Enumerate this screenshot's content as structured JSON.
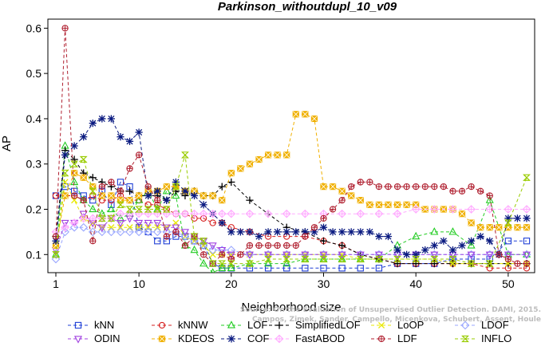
{
  "chart_data": {
    "type": "line",
    "title": "Parkinson_withoutdupl_10_v09",
    "xlabel": "Neighborhood size",
    "ylabel": "AP",
    "xlim": [
      1,
      52
    ],
    "ylim": [
      0.06,
      0.62
    ],
    "xticks": [
      1,
      10,
      20,
      30,
      40,
      50
    ],
    "yticks": [
      0.1,
      0.2,
      0.3,
      0.4,
      0.5,
      0.6
    ],
    "grid": false,
    "legend_position": "bottom",
    "watermark": [
      "Source: On the Evaluation of Unsupervised Outlier Detection. DAMI, 2015.",
      "Campos, Zimek, Sander, Campello, Micenkova, Schubert, Assent, Houle"
    ],
    "series": [
      {
        "name": "kNN",
        "color": "#1f3fd6",
        "marker": "square",
        "x": [
          1,
          2,
          3,
          4,
          5,
          6,
          7,
          8,
          9,
          10,
          11,
          12,
          13,
          14,
          15,
          16,
          17,
          18,
          19,
          20,
          22,
          24,
          26,
          28,
          30,
          32,
          34,
          36,
          38,
          40,
          42,
          44,
          46,
          48,
          50,
          52
        ],
        "y": [
          0.23,
          0.25,
          0.24,
          0.23,
          0.22,
          0.24,
          0.21,
          0.26,
          0.25,
          0.16,
          0.15,
          0.13,
          0.13,
          0.14,
          0.14,
          0.13,
          0.12,
          0.08,
          0.07,
          0.07,
          0.07,
          0.07,
          0.07,
          0.07,
          0.07,
          0.07,
          0.07,
          0.07,
          0.08,
          0.08,
          0.08,
          0.09,
          0.09,
          0.09,
          0.13,
          0.13
        ]
      },
      {
        "name": "kNNW",
        "color": "#d62020",
        "marker": "circle",
        "x": [
          1,
          2,
          3,
          4,
          5,
          6,
          7,
          8,
          9,
          10,
          11,
          12,
          13,
          14,
          15,
          16,
          17,
          18,
          19,
          20,
          22,
          24,
          26,
          28,
          30,
          32,
          34,
          36,
          38,
          40,
          42,
          44,
          46,
          48,
          50,
          52
        ],
        "y": [
          0.23,
          0.23,
          0.23,
          0.22,
          0.23,
          0.22,
          0.22,
          0.23,
          0.22,
          0.22,
          0.21,
          0.21,
          0.2,
          0.19,
          0.19,
          0.18,
          0.18,
          0.17,
          0.17,
          0.16,
          0.15,
          0.14,
          0.14,
          0.14,
          0.13,
          0.12,
          0.1,
          0.09,
          0.08,
          0.08,
          0.08,
          0.08,
          0.08,
          0.07,
          0.07,
          0.07
        ]
      },
      {
        "name": "LOF",
        "color": "#22cc22",
        "marker": "triangle-up",
        "x": [
          1,
          2,
          3,
          4,
          5,
          6,
          7,
          8,
          9,
          10,
          11,
          12,
          13,
          14,
          15,
          16,
          17,
          18,
          19,
          20,
          22,
          24,
          26,
          28,
          30,
          32,
          34,
          36,
          38,
          40,
          42,
          44,
          46,
          48,
          50,
          52
        ],
        "y": [
          0.1,
          0.34,
          0.26,
          0.22,
          0.2,
          0.19,
          0.2,
          0.18,
          0.19,
          0.22,
          0.24,
          0.2,
          0.24,
          0.23,
          0.12,
          0.11,
          0.08,
          0.06,
          0.07,
          0.07,
          0.08,
          0.08,
          0.08,
          0.09,
          0.09,
          0.09,
          0.09,
          0.09,
          0.12,
          0.14,
          0.15,
          0.15,
          0.12,
          0.22,
          0.1,
          0.1
        ]
      },
      {
        "name": "SimplifiedLOF",
        "color": "#000000",
        "marker": "plus",
        "x": [
          1,
          2,
          3,
          4,
          5,
          6,
          7,
          8,
          9,
          10,
          11,
          12,
          13,
          14,
          15,
          16,
          17,
          18,
          19,
          20,
          22,
          24,
          26,
          28,
          30,
          32,
          34,
          36,
          38,
          40,
          42,
          44,
          46,
          48,
          50,
          52
        ],
        "y": [
          0.14,
          0.33,
          0.31,
          0.28,
          0.27,
          0.26,
          0.25,
          0.24,
          0.24,
          0.23,
          0.23,
          0.23,
          0.22,
          0.24,
          0.23,
          0.24,
          0.23,
          0.23,
          0.25,
          0.26,
          0.22,
          0.19,
          0.16,
          0.15,
          0.13,
          0.12,
          0.1,
          0.09,
          0.08,
          0.08,
          0.08,
          0.08,
          0.08,
          0.08,
          0.08,
          0.08
        ]
      },
      {
        "name": "LoOP",
        "color": "#e8e800",
        "marker": "x",
        "x": [
          1,
          2,
          3,
          4,
          5,
          6,
          7,
          8,
          9,
          10,
          11,
          12,
          13,
          14,
          15,
          16,
          17,
          18,
          19,
          20,
          22,
          24,
          26,
          28,
          30,
          32,
          34,
          36,
          38,
          40,
          42,
          44,
          46,
          48,
          50,
          52
        ],
        "y": [
          0.1,
          0.26,
          0.22,
          0.18,
          0.17,
          0.16,
          0.16,
          0.16,
          0.16,
          0.16,
          0.16,
          0.16,
          0.16,
          0.17,
          0.14,
          0.13,
          0.12,
          0.1,
          0.1,
          0.1,
          0.1,
          0.1,
          0.1,
          0.1,
          0.1,
          0.1,
          0.09,
          0.09,
          0.09,
          0.09,
          0.09,
          0.08,
          0.08,
          0.08,
          0.08,
          0.08
        ]
      },
      {
        "name": "LDOF",
        "color": "#9aa7ff",
        "marker": "diamond",
        "x": [
          1,
          2,
          3,
          4,
          5,
          6,
          7,
          8,
          9,
          10,
          11,
          12,
          13,
          14,
          15,
          16,
          17,
          18,
          19,
          20,
          22,
          24,
          26,
          28,
          30,
          32,
          34,
          36,
          38,
          40,
          42,
          44,
          46,
          48,
          50,
          52
        ],
        "y": [
          0.09,
          0.15,
          0.16,
          0.16,
          0.15,
          0.15,
          0.15,
          0.15,
          0.15,
          0.15,
          0.15,
          0.15,
          0.15,
          0.15,
          0.14,
          0.13,
          0.12,
          0.11,
          0.11,
          0.11,
          0.1,
          0.1,
          0.1,
          0.1,
          0.1,
          0.1,
          0.1,
          0.1,
          0.1,
          0.1,
          0.1,
          0.1,
          0.1,
          0.1,
          0.1,
          0.1
        ]
      },
      {
        "name": "ODIN",
        "color": "#a040e0",
        "marker": "triangle-down",
        "x": [
          1,
          2,
          3,
          4,
          5,
          6,
          7,
          8,
          9,
          10,
          11,
          12,
          13,
          14,
          15,
          16,
          17,
          18,
          19,
          20,
          22,
          24,
          26,
          28,
          30,
          32,
          34,
          36,
          38,
          40,
          42,
          44,
          46,
          48,
          50,
          52
        ],
        "y": [
          0.11,
          0.17,
          0.17,
          0.19,
          0.17,
          0.16,
          0.18,
          0.17,
          0.18,
          0.17,
          0.17,
          0.17,
          0.16,
          0.16,
          0.15,
          0.14,
          0.13,
          0.12,
          0.11,
          0.1,
          0.1,
          0.1,
          0.1,
          0.1,
          0.1,
          0.1,
          0.1,
          0.1,
          0.1,
          0.1,
          0.1,
          0.1,
          0.1,
          0.1,
          0.1,
          0.1
        ]
      },
      {
        "name": "KDEOS",
        "color": "#f0b000",
        "marker": "square-filled",
        "x": [
          1,
          2,
          3,
          4,
          5,
          6,
          7,
          8,
          9,
          10,
          11,
          12,
          13,
          14,
          15,
          16,
          17,
          18,
          19,
          20,
          21,
          22,
          23,
          24,
          25,
          26,
          27,
          28,
          29,
          30,
          31,
          32,
          33,
          34,
          35,
          36,
          37,
          38,
          39,
          40,
          41,
          42,
          43,
          44,
          45,
          46,
          47,
          48,
          49,
          50,
          51,
          52
        ],
        "y": [
          0.12,
          0.23,
          0.28,
          0.27,
          0.25,
          0.23,
          0.23,
          0.22,
          0.22,
          0.23,
          0.24,
          0.24,
          0.25,
          0.25,
          0.24,
          0.24,
          0.23,
          0.23,
          0.22,
          0.28,
          0.29,
          0.3,
          0.31,
          0.32,
          0.32,
          0.32,
          0.41,
          0.41,
          0.4,
          0.25,
          0.25,
          0.24,
          0.23,
          0.22,
          0.21,
          0.21,
          0.21,
          0.21,
          0.21,
          0.21,
          0.2,
          0.2,
          0.2,
          0.2,
          0.19,
          0.17,
          0.16,
          0.16,
          0.16,
          0.16,
          0.16,
          0.16
        ]
      },
      {
        "name": "COF",
        "color": "#0a1a80",
        "marker": "asterisk",
        "x": [
          1,
          2,
          3,
          4,
          5,
          6,
          7,
          8,
          9,
          10,
          11,
          12,
          13,
          14,
          15,
          16,
          17,
          18,
          19,
          20,
          21,
          22,
          23,
          24,
          25,
          26,
          27,
          28,
          29,
          30,
          31,
          32,
          33,
          34,
          35,
          36,
          37,
          38,
          39,
          40,
          41,
          42,
          43,
          44,
          45,
          46,
          47,
          48,
          49,
          50,
          51,
          52
        ],
        "y": [
          0.13,
          0.32,
          0.34,
          0.36,
          0.39,
          0.4,
          0.4,
          0.36,
          0.35,
          0.37,
          0.23,
          0.24,
          0.22,
          0.26,
          0.24,
          0.23,
          0.21,
          0.19,
          0.17,
          0.15,
          0.15,
          0.15,
          0.14,
          0.15,
          0.15,
          0.15,
          0.15,
          0.15,
          0.15,
          0.16,
          0.15,
          0.15,
          0.15,
          0.15,
          0.15,
          0.14,
          0.14,
          0.11,
          0.1,
          0.1,
          0.11,
          0.12,
          0.13,
          0.11,
          0.12,
          0.13,
          0.14,
          0.13,
          0.1,
          0.18,
          0.18,
          0.18
        ]
      },
      {
        "name": "FastABOD",
        "color": "#ffaaff",
        "marker": "plus-diamond",
        "x": [
          1,
          2,
          3,
          4,
          5,
          6,
          7,
          8,
          9,
          10,
          11,
          12,
          13,
          14,
          15,
          16,
          17,
          18,
          19,
          20,
          22,
          24,
          26,
          28,
          30,
          32,
          34,
          36,
          38,
          40,
          42,
          44,
          46,
          48,
          50,
          52
        ],
        "y": [
          0.15,
          0.16,
          0.17,
          0.18,
          0.18,
          0.18,
          0.18,
          0.19,
          0.19,
          0.19,
          0.19,
          0.19,
          0.19,
          0.19,
          0.19,
          0.19,
          0.19,
          0.19,
          0.19,
          0.19,
          0.19,
          0.19,
          0.19,
          0.19,
          0.19,
          0.19,
          0.19,
          0.19,
          0.19,
          0.2,
          0.2,
          0.2,
          0.2,
          0.2,
          0.2,
          0.2
        ]
      },
      {
        "name": "LDF",
        "color": "#b02030",
        "marker": "circle-plus",
        "x": [
          1,
          2,
          3,
          4,
          5,
          6,
          7,
          8,
          9,
          10,
          11,
          12,
          13,
          14,
          15,
          16,
          17,
          18,
          19,
          20,
          21,
          22,
          23,
          24,
          25,
          26,
          27,
          28,
          29,
          30,
          31,
          32,
          33,
          34,
          35,
          36,
          37,
          38,
          39,
          40,
          41,
          42,
          43,
          44,
          45,
          46,
          47,
          48,
          49,
          50,
          51,
          52
        ],
        "y": [
          0.14,
          0.6,
          0.23,
          0.22,
          0.13,
          0.25,
          0.26,
          0.24,
          0.29,
          0.32,
          0.25,
          0.22,
          0.14,
          0.15,
          0.12,
          0.14,
          0.1,
          0.08,
          0.1,
          0.09,
          0.1,
          0.12,
          0.12,
          0.12,
          0.12,
          0.12,
          0.12,
          0.14,
          0.16,
          0.18,
          0.2,
          0.22,
          0.25,
          0.26,
          0.26,
          0.25,
          0.25,
          0.25,
          0.25,
          0.25,
          0.25,
          0.25,
          0.25,
          0.24,
          0.24,
          0.25,
          0.24,
          0.23,
          0.1,
          0.09,
          0.08,
          0.08
        ]
      },
      {
        "name": "INFLO",
        "color": "#99cc00",
        "marker": "hourglass",
        "x": [
          1,
          2,
          3,
          4,
          5,
          6,
          7,
          8,
          9,
          10,
          11,
          12,
          13,
          14,
          15,
          16,
          17,
          18,
          19,
          20,
          22,
          24,
          26,
          28,
          30,
          32,
          34,
          36,
          38,
          40,
          42,
          44,
          46,
          48,
          50,
          52
        ],
        "y": [
          0.1,
          0.28,
          0.3,
          0.31,
          0.24,
          0.18,
          0.18,
          0.21,
          0.2,
          0.2,
          0.2,
          0.2,
          0.2,
          0.25,
          0.32,
          0.14,
          0.13,
          0.08,
          0.08,
          0.08,
          0.08,
          0.09,
          0.09,
          0.09,
          0.09,
          0.09,
          0.09,
          0.09,
          0.09,
          0.09,
          0.09,
          0.09,
          0.08,
          0.08,
          0.17,
          0.27
        ]
      }
    ]
  }
}
